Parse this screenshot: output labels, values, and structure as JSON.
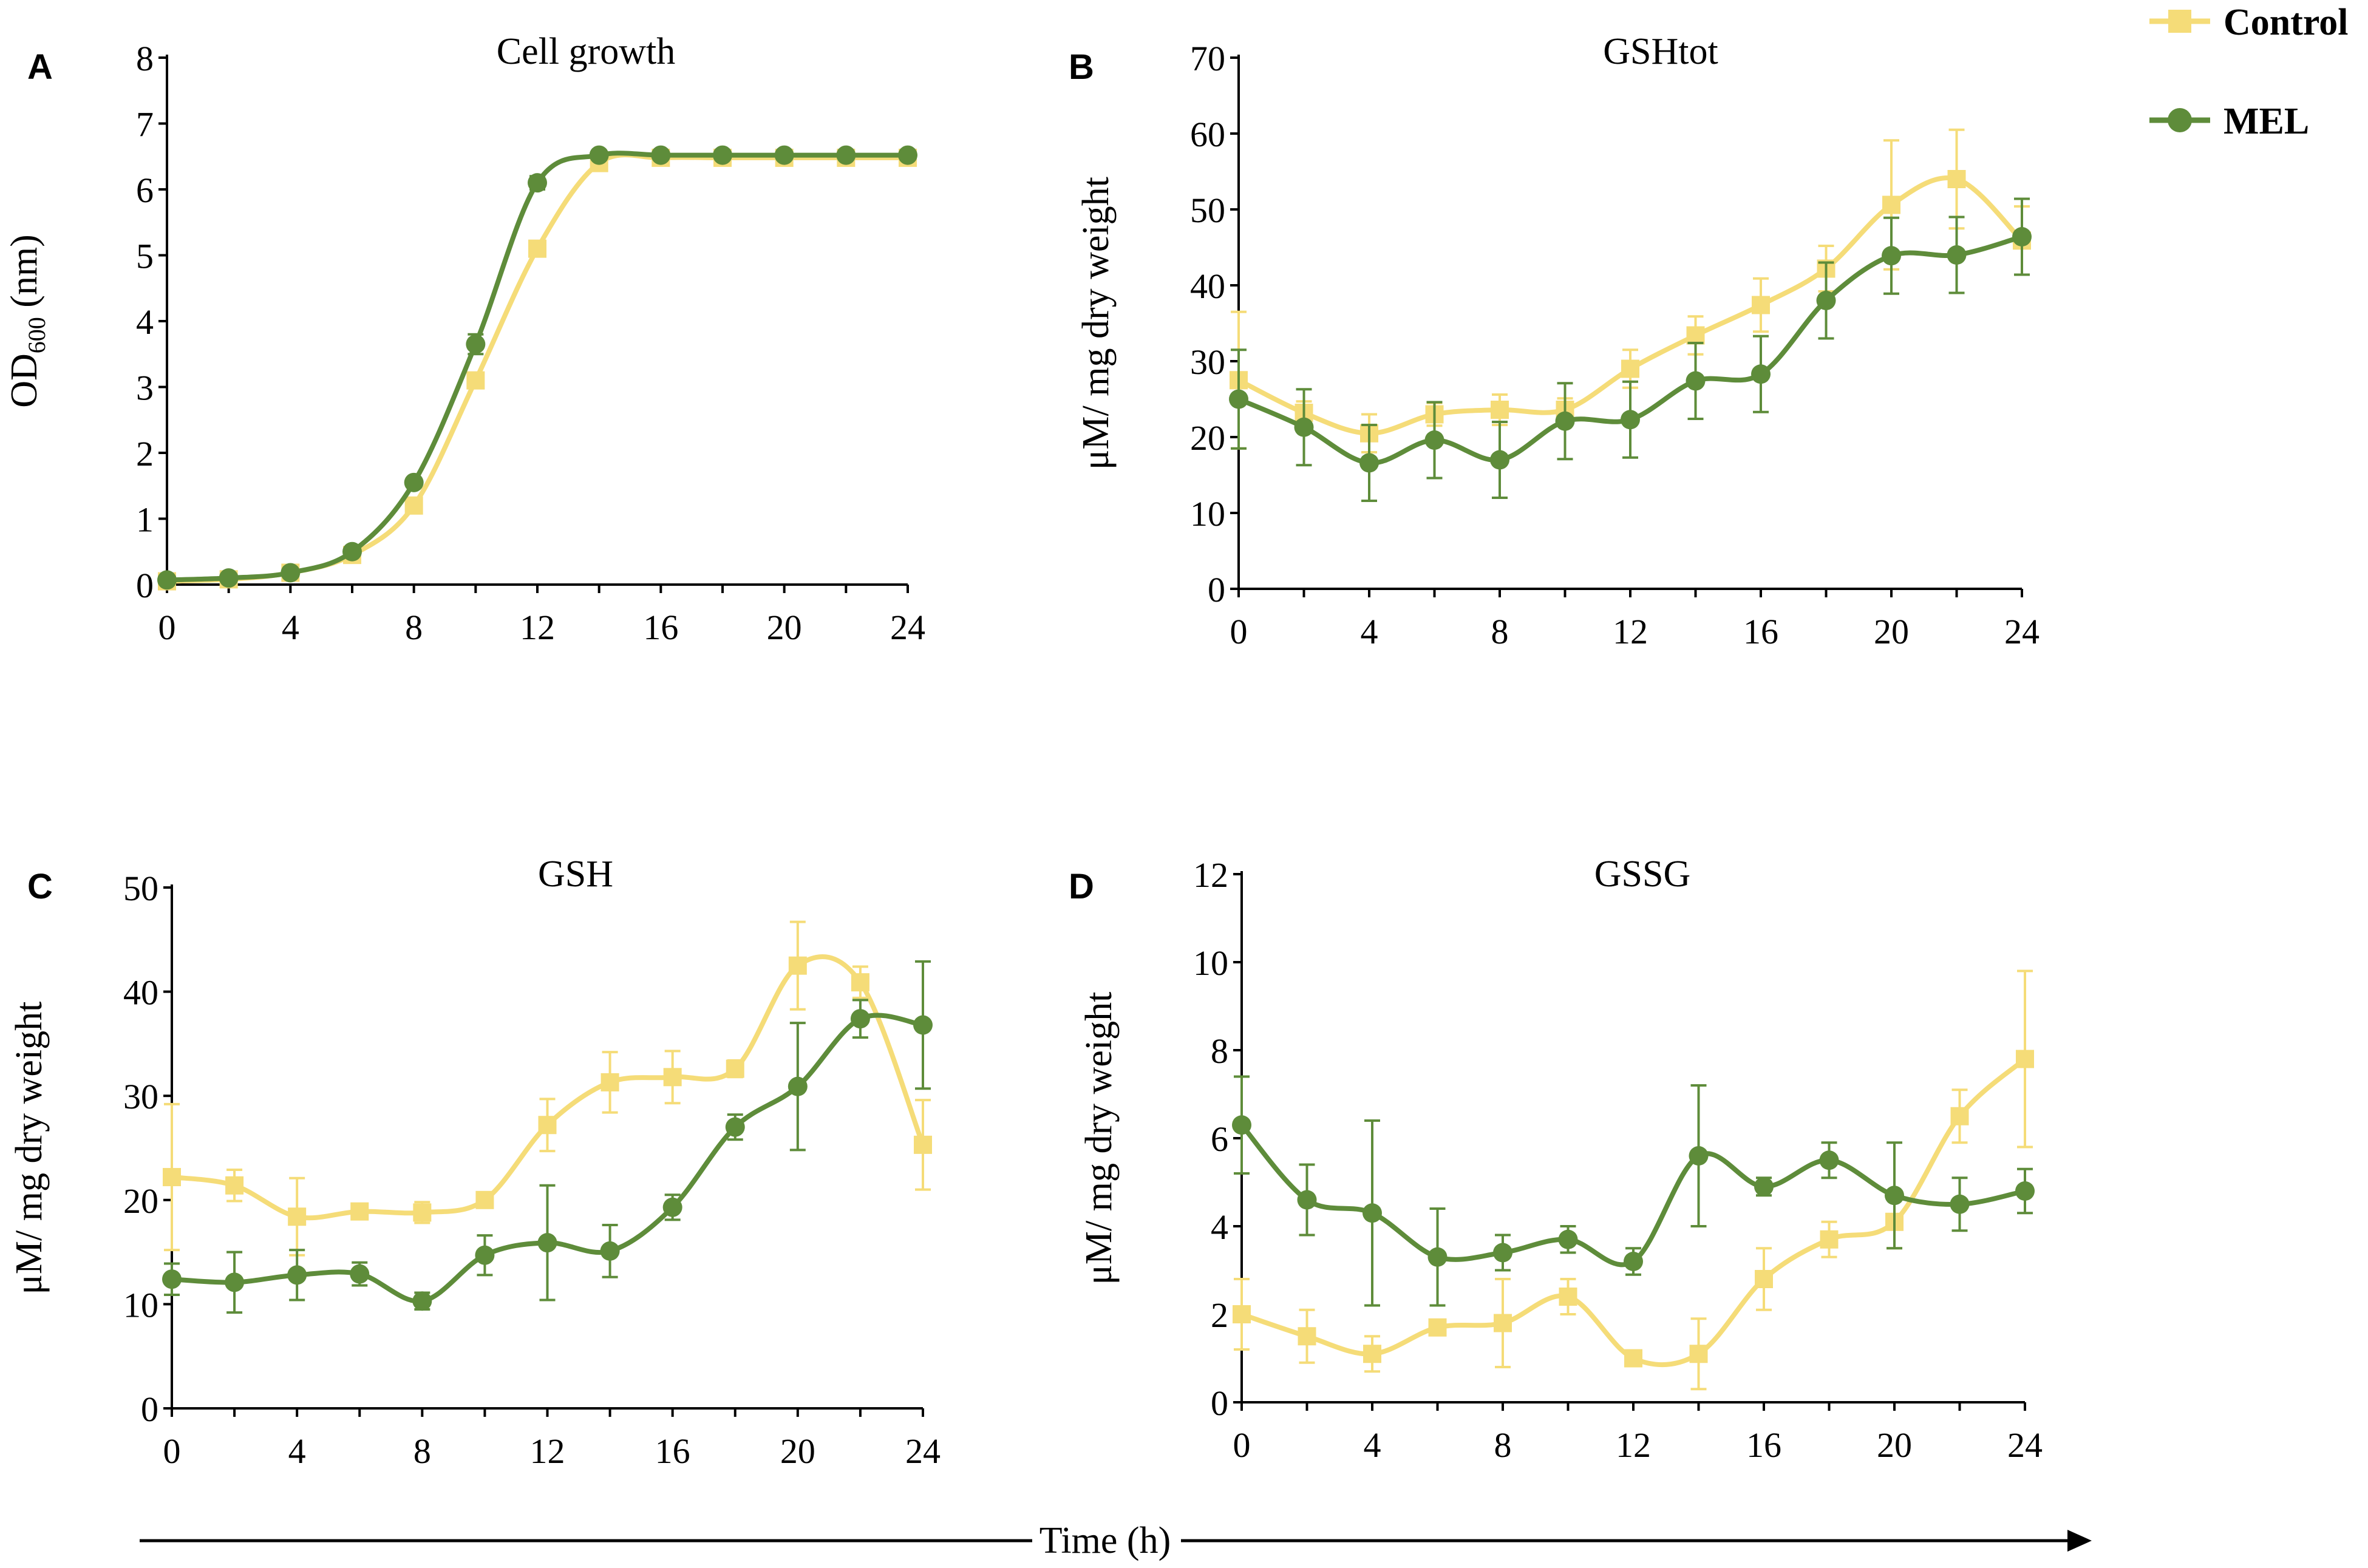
{
  "legend": {
    "entries": [
      {
        "name": "Control",
        "color": "#F5DC78",
        "marker": "square"
      },
      {
        "name": "MEL",
        "color": "#5E8C3A",
        "marker": "circle"
      }
    ]
  },
  "shared_axis": {
    "xlabel": "Time (h)"
  },
  "chart_data": [
    {
      "panel": "A",
      "type": "line",
      "title": "Cell growth",
      "ylabel_main": "OD",
      "ylabel_sub": "600",
      "ylabel_tail": " (nm)",
      "xlabel": "",
      "x": [
        0,
        2,
        4,
        6,
        8,
        10,
        12,
        14,
        16,
        18,
        20,
        22,
        24
      ],
      "xticks": [
        0,
        4,
        8,
        12,
        16,
        20,
        24
      ],
      "xlim": [
        0,
        24
      ],
      "ylim": [
        0,
        8
      ],
      "yticks": [
        0,
        1,
        2,
        3,
        4,
        5,
        6,
        7,
        8
      ],
      "series": [
        {
          "name": "Control",
          "values": [
            0.05,
            0.08,
            0.18,
            0.45,
            1.2,
            3.1,
            5.1,
            6.4,
            6.48,
            6.48,
            6.48,
            6.48,
            6.48
          ],
          "errors": [
            0.05,
            0.05,
            0.05,
            0.05,
            0.05,
            0.05,
            0.05,
            0.05,
            0.05,
            0.05,
            0.05,
            0.05,
            0.05
          ]
        },
        {
          "name": "MEL",
          "values": [
            0.07,
            0.1,
            0.18,
            0.5,
            1.55,
            3.65,
            6.1,
            6.52,
            6.52,
            6.52,
            6.52,
            6.52,
            6.52
          ],
          "errors": [
            0.05,
            0.05,
            0.05,
            0.05,
            0.05,
            0.15,
            0.1,
            0.05,
            0.05,
            0.05,
            0.05,
            0.05,
            0.05
          ]
        }
      ]
    },
    {
      "panel": "B",
      "type": "line",
      "title": "GSHtot",
      "ylabel": "μM/ mg dry weight",
      "xlabel": "",
      "x": [
        0,
        2,
        4,
        6,
        8,
        10,
        12,
        14,
        16,
        18,
        20,
        22,
        24
      ],
      "xticks": [
        0,
        4,
        8,
        12,
        16,
        20,
        24
      ],
      "xlim": [
        0,
        24
      ],
      "ylim": [
        0,
        70
      ],
      "yticks": [
        0,
        10,
        20,
        30,
        40,
        50,
        60,
        70
      ],
      "series": [
        {
          "name": "Control",
          "values": [
            27.5,
            23.2,
            20.5,
            23.0,
            23.6,
            23.6,
            29.0,
            33.4,
            37.4,
            42.2,
            50.6,
            54.0,
            45.9
          ],
          "errors": [
            9.0,
            1.5,
            2.5,
            1.5,
            2.0,
            1.5,
            2.5,
            2.5,
            3.5,
            3.0,
            8.5,
            6.5,
            4.5
          ]
        },
        {
          "name": "MEL",
          "values": [
            25.0,
            21.3,
            16.6,
            19.6,
            17.0,
            22.1,
            22.3,
            27.4,
            28.3,
            38.0,
            43.9,
            44.0,
            46.4
          ],
          "errors": [
            6.5,
            5.0,
            5.0,
            5.0,
            5.0,
            5.0,
            5.0,
            5.0,
            5.0,
            5.0,
            5.0,
            5.0,
            5.0
          ]
        }
      ]
    },
    {
      "panel": "C",
      "type": "line",
      "title": "GSH",
      "ylabel": "μM/ mg dry weight",
      "xlabel": "",
      "x": [
        0,
        2,
        4,
        6,
        8,
        10,
        12,
        14,
        16,
        18,
        20,
        22,
        24
      ],
      "xticks": [
        0,
        4,
        8,
        12,
        16,
        20,
        24
      ],
      "xlim": [
        0,
        24
      ],
      "ylim": [
        0,
        50
      ],
      "yticks": [
        0,
        10,
        20,
        30,
        40,
        50
      ],
      "series": [
        {
          "name": "Control",
          "values": [
            22.2,
            21.4,
            18.4,
            18.9,
            18.8,
            20.0,
            27.2,
            31.3,
            31.8,
            32.6,
            42.5,
            40.9,
            25.3
          ],
          "errors": [
            7.0,
            1.5,
            3.7,
            0.5,
            1.0,
            0.5,
            2.5,
            2.9,
            2.5,
            0.8,
            4.2,
            1.5,
            4.3
          ]
        },
        {
          "name": "MEL",
          "values": [
            12.4,
            12.1,
            12.8,
            12.9,
            10.3,
            14.7,
            15.9,
            15.1,
            19.3,
            27.0,
            30.9,
            37.4,
            36.8
          ],
          "errors": [
            1.5,
            2.9,
            2.4,
            1.1,
            0.8,
            1.9,
            5.5,
            2.5,
            1.2,
            1.2,
            6.1,
            1.8,
            6.1
          ]
        }
      ]
    },
    {
      "panel": "D",
      "type": "line",
      "title": "GSSG",
      "ylabel": "μM/ mg dry weight",
      "xlabel": "",
      "x": [
        0,
        2,
        4,
        6,
        8,
        10,
        12,
        14,
        16,
        18,
        20,
        22,
        24
      ],
      "xticks": [
        0,
        4,
        8,
        12,
        16,
        20,
        24
      ],
      "xlim": [
        0,
        24
      ],
      "ylim": [
        0,
        12
      ],
      "yticks": [
        0,
        2,
        4,
        6,
        8,
        10,
        12
      ],
      "series": [
        {
          "name": "Control",
          "values": [
            2.0,
            1.5,
            1.1,
            1.7,
            1.8,
            2.4,
            1.0,
            1.1,
            2.8,
            3.7,
            4.1,
            6.5,
            7.8
          ],
          "errors": [
            0.8,
            0.6,
            0.4,
            0.1,
            1.0,
            0.4,
            0.1,
            0.8,
            0.7,
            0.4,
            0.6,
            0.6,
            2.0
          ]
        },
        {
          "name": "MEL",
          "values": [
            6.3,
            4.6,
            4.3,
            3.3,
            3.4,
            3.7,
            3.2,
            5.6,
            4.9,
            5.5,
            4.7,
            4.5,
            4.8
          ],
          "errors": [
            1.1,
            0.8,
            2.1,
            1.1,
            0.4,
            0.3,
            0.3,
            1.6,
            0.2,
            0.4,
            1.2,
            0.6,
            0.5
          ]
        }
      ]
    }
  ]
}
